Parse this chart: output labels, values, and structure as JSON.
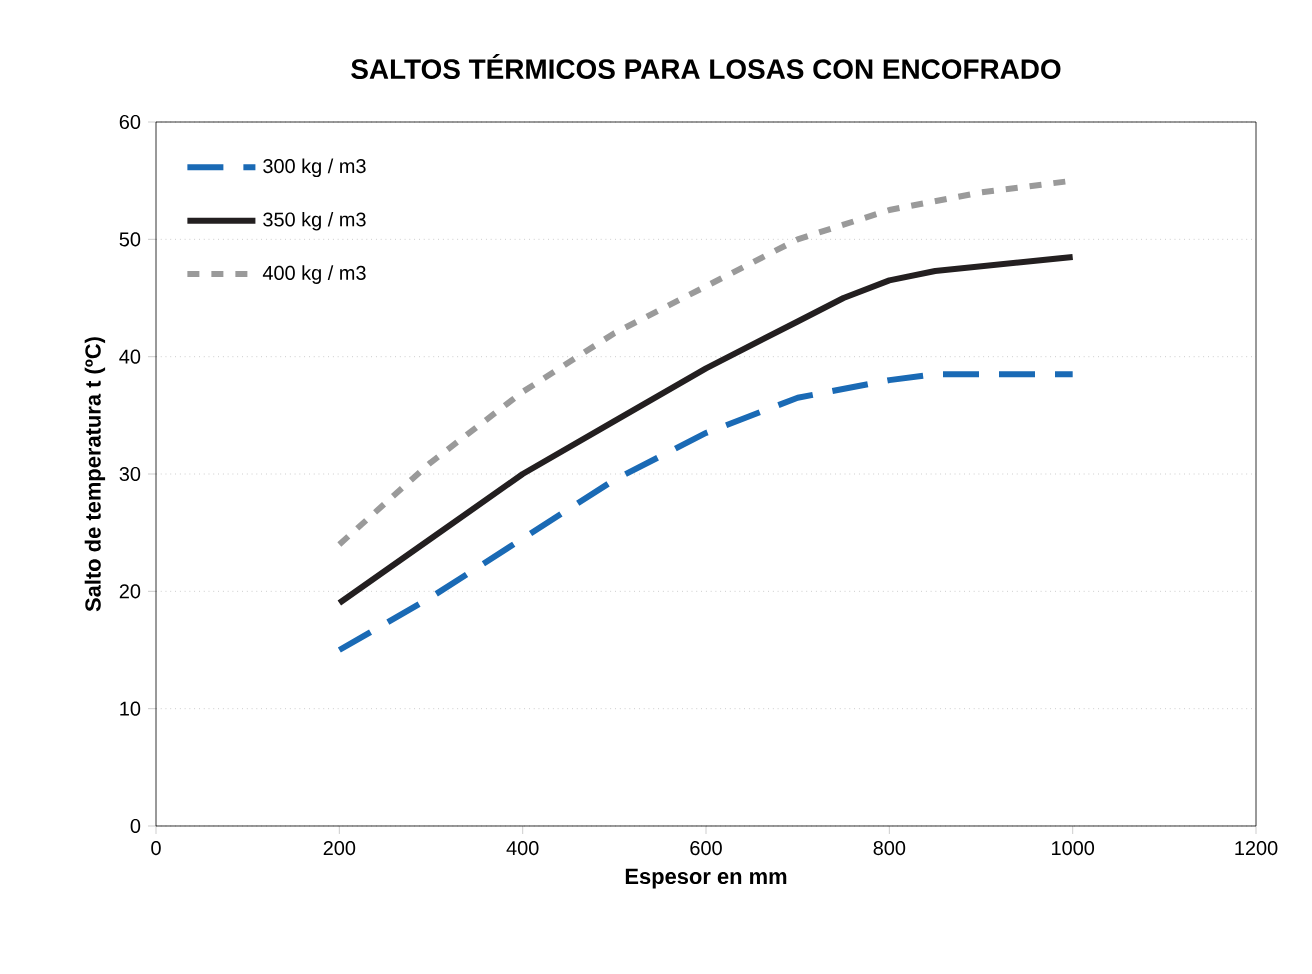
{
  "chart_data": {
    "type": "line",
    "title": "SALTOS TÉRMICOS PARA LOSAS CON ENCOFRADO",
    "xlabel": "Espesor en mm",
    "ylabel": "Salto de temperatura t  (ºC)",
    "xlim": [
      0,
      1200
    ],
    "xticks": [
      0,
      200,
      400,
      600,
      800,
      1000,
      1200
    ],
    "ylim": [
      0,
      60
    ],
    "yticks": [
      0,
      10,
      20,
      30,
      40,
      50,
      60
    ],
    "grid": "y",
    "legend": "top left",
    "series": [
      {
        "name": "300 kg / m3",
        "color": "#1a6ab5",
        "line_style": "dashed",
        "x": [
          200,
          300,
          400,
          500,
          600,
          700,
          800,
          850,
          1000
        ],
        "values": [
          15,
          19.5,
          24.5,
          29.5,
          33.5,
          36.5,
          38,
          38.5,
          38.5
        ]
      },
      {
        "name": "350 kg / m3",
        "color": "#231f20",
        "line_style": "solid",
        "x": [
          200,
          300,
          400,
          500,
          600,
          700,
          750,
          800,
          850,
          1000
        ],
        "values": [
          19,
          24.5,
          30,
          34.5,
          39,
          43,
          45,
          46.5,
          47.3,
          48.5
        ]
      },
      {
        "name": "400 kg / m3",
        "color": "#9a9a9a",
        "line_style": "dotted",
        "x": [
          200,
          300,
          400,
          500,
          600,
          700,
          800,
          900,
          1000
        ],
        "values": [
          24,
          31,
          37,
          42,
          46,
          50,
          52.5,
          54,
          55
        ]
      }
    ]
  }
}
